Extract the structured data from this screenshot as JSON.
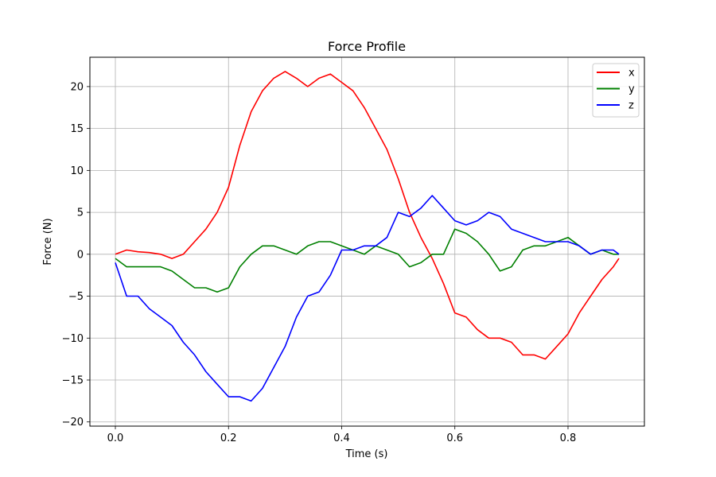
{
  "chart_data": {
    "type": "line",
    "title": "Force Profile",
    "xlabel": "Time (s)",
    "ylabel": "Force (N)",
    "xlim": [
      -0.045,
      0.935
    ],
    "ylim": [
      -20.5,
      23.5
    ],
    "xticks": [
      0.0,
      0.2,
      0.4,
      0.6,
      0.8
    ],
    "xtick_labels": [
      "0.0",
      "0.2",
      "0.4",
      "0.6",
      "0.8"
    ],
    "yticks": [
      -20,
      -15,
      -10,
      -5,
      0,
      5,
      10,
      15,
      20
    ],
    "ytick_labels": [
      "−20",
      "−15",
      "−10",
      "−5",
      "0",
      "5",
      "10",
      "15",
      "20"
    ],
    "grid": true,
    "legend_position": "top-right",
    "x": [
      0.0,
      0.02,
      0.04,
      0.06,
      0.08,
      0.1,
      0.12,
      0.14,
      0.16,
      0.18,
      0.2,
      0.22,
      0.24,
      0.26,
      0.28,
      0.3,
      0.32,
      0.34,
      0.36,
      0.38,
      0.4,
      0.42,
      0.44,
      0.46,
      0.48,
      0.5,
      0.52,
      0.54,
      0.56,
      0.58,
      0.6,
      0.62,
      0.64,
      0.66,
      0.68,
      0.7,
      0.72,
      0.74,
      0.76,
      0.78,
      0.8,
      0.82,
      0.84,
      0.86,
      0.88,
      0.89
    ],
    "series": [
      {
        "name": "x",
        "color": "#ff0000",
        "values": [
          0.0,
          0.5,
          0.3,
          0.2,
          0.0,
          -0.5,
          0.0,
          1.5,
          3.0,
          5.0,
          8.0,
          13.0,
          17.0,
          19.5,
          21.0,
          21.8,
          21.0,
          20.0,
          21.0,
          21.5,
          20.5,
          19.5,
          17.5,
          15.0,
          12.5,
          9.0,
          5.0,
          2.0,
          -0.5,
          -3.5,
          -7.0,
          -7.5,
          -9.0,
          -10.0,
          -10.0,
          -10.5,
          -12.0,
          -12.0,
          -12.5,
          -11.0,
          -9.5,
          -7.0,
          -5.0,
          -3.0,
          -1.5,
          -0.5
        ]
      },
      {
        "name": "y",
        "color": "#008000",
        "values": [
          -0.5,
          -1.5,
          -1.5,
          -1.5,
          -1.5,
          -2.0,
          -3.0,
          -4.0,
          -4.0,
          -4.5,
          -4.0,
          -1.5,
          0.0,
          1.0,
          1.0,
          0.5,
          0.0,
          1.0,
          1.5,
          1.5,
          1.0,
          0.5,
          0.0,
          1.0,
          0.5,
          0.0,
          -1.5,
          -1.0,
          0.0,
          0.0,
          3.0,
          2.5,
          1.5,
          0.0,
          -2.0,
          -1.5,
          0.5,
          1.0,
          1.0,
          1.5,
          2.0,
          1.0,
          0.0,
          0.5,
          0.0,
          0.0
        ]
      },
      {
        "name": "z",
        "color": "#0000ff",
        "values": [
          -1.0,
          -5.0,
          -5.0,
          -6.5,
          -7.5,
          -8.5,
          -10.5,
          -12.0,
          -14.0,
          -15.5,
          -17.0,
          -17.0,
          -17.5,
          -16.0,
          -13.5,
          -11.0,
          -7.5,
          -5.0,
          -4.5,
          -2.5,
          0.5,
          0.5,
          1.0,
          1.0,
          2.0,
          5.0,
          4.5,
          5.5,
          7.0,
          5.5,
          4.0,
          3.5,
          4.0,
          5.0,
          4.5,
          3.0,
          2.5,
          2.0,
          1.5,
          1.5,
          1.5,
          1.0,
          0.0,
          0.5,
          0.5,
          0.0
        ]
      }
    ]
  }
}
